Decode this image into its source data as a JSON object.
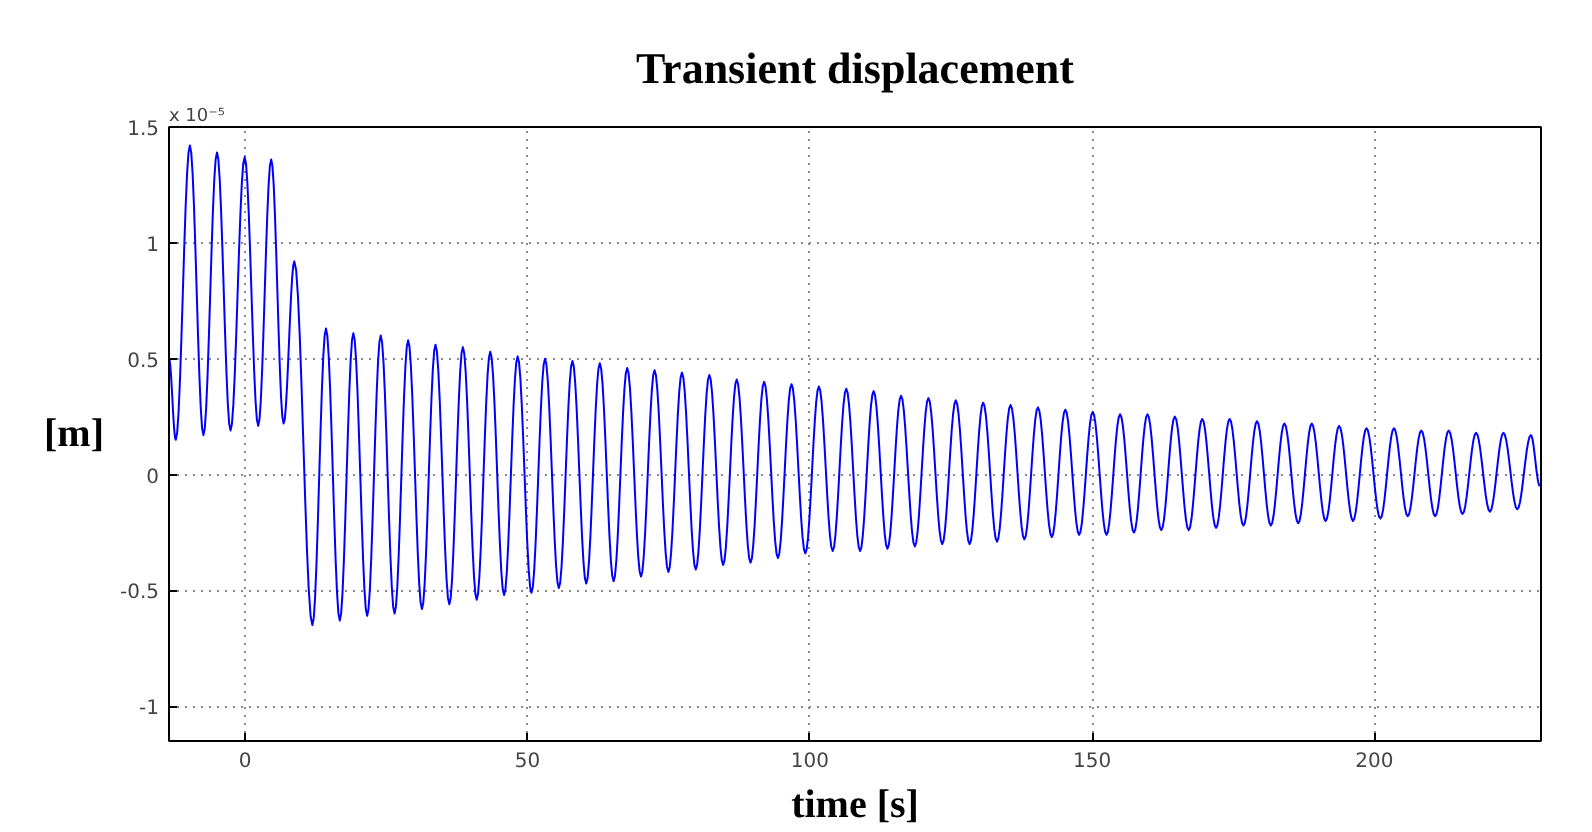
{
  "chart_data": {
    "type": "line",
    "title": "Transient displacement",
    "xlabel": "time [s]",
    "ylabel": "[m]",
    "annotations": [
      "x 10⁻⁵"
    ],
    "series": [
      {
        "color": "#0000ff",
        "x": [
          -13.5,
          -12.3,
          -9.8,
          -7.4,
          -5.0,
          -2.6,
          -0.1,
          2.3,
          4.6,
          6.8,
          8.7,
          11.9,
          14.3,
          16.75,
          19.15,
          21.6,
          24.0,
          26.45,
          28.85,
          31.3,
          33.7,
          36.15,
          38.55,
          41.0,
          43.4,
          45.85,
          48.25,
          50.7,
          53.1,
          55.55,
          57.95,
          60.4,
          62.8,
          65.25,
          67.65,
          70.1,
          72.5,
          74.95,
          77.35,
          79.8,
          82.2,
          84.65,
          87.05,
          89.5,
          91.9,
          94.35,
          96.75,
          99.2,
          101.6,
          104.05,
          106.45,
          108.9,
          111.3,
          113.75,
          116.15,
          118.6,
          121.0,
          123.45,
          125.85,
          128.3,
          130.7,
          133.15,
          135.55,
          138.0,
          140.4,
          142.85,
          145.25,
          147.7,
          150.1,
          152.55,
          154.95,
          157.4,
          159.8,
          162.25,
          164.65,
          167.1,
          169.5,
          171.95,
          174.35,
          176.8,
          179.2,
          181.65,
          184.05,
          186.5,
          188.9,
          191.35,
          193.75,
          196.2,
          198.6,
          201.05,
          203.45,
          205.9,
          208.3,
          210.75,
          213.15,
          215.6,
          218.0,
          220.45,
          222.85,
          225.3,
          227.7,
          229.3
        ],
        "values": [
          0.5,
          0.15,
          1.42,
          0.17,
          1.39,
          0.19,
          1.37,
          0.21,
          1.36,
          0.22,
          0.92,
          -0.65,
          0.63,
          -0.63,
          0.61,
          -0.61,
          0.6,
          -0.6,
          0.58,
          -0.58,
          0.56,
          -0.56,
          0.55,
          -0.54,
          0.53,
          -0.52,
          0.51,
          -0.51,
          0.5,
          -0.49,
          0.49,
          -0.47,
          0.48,
          -0.46,
          0.46,
          -0.44,
          0.45,
          -0.42,
          0.44,
          -0.41,
          0.43,
          -0.39,
          0.41,
          -0.38,
          0.4,
          -0.36,
          0.39,
          -0.34,
          0.38,
          -0.33,
          0.37,
          -0.33,
          0.36,
          -0.32,
          0.34,
          -0.31,
          0.33,
          -0.3,
          0.32,
          -0.3,
          0.31,
          -0.29,
          0.3,
          -0.28,
          0.29,
          -0.27,
          0.28,
          -0.26,
          0.27,
          -0.26,
          0.26,
          -0.25,
          0.26,
          -0.24,
          0.25,
          -0.24,
          0.24,
          -0.23,
          0.24,
          -0.22,
          0.23,
          -0.22,
          0.22,
          -0.21,
          0.22,
          -0.2,
          0.21,
          -0.2,
          0.2,
          -0.19,
          0.2,
          -0.18,
          0.19,
          -0.18,
          0.19,
          -0.17,
          0.18,
          -0.16,
          0.18,
          -0.15,
          0.17,
          -0.05
        ]
      }
    ],
    "xlim": [
      -13.5,
      229.5
    ],
    "ylim": [
      -1.15,
      1.5
    ],
    "xticks": [
      0,
      50,
      100,
      150,
      200
    ],
    "yticks": [
      -1,
      -0.5,
      0,
      0.5,
      1,
      1.5
    ],
    "grid": true,
    "line_style": "solid",
    "marker": "none"
  }
}
